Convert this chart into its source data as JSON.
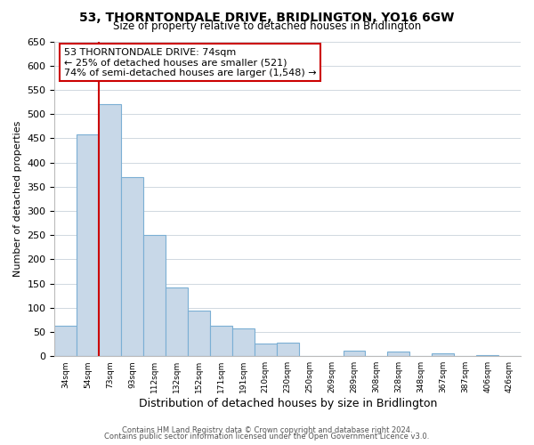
{
  "title": "53, THORNTONDALE DRIVE, BRIDLINGTON, YO16 6GW",
  "subtitle": "Size of property relative to detached houses in Bridlington",
  "xlabel": "Distribution of detached houses by size in Bridlington",
  "ylabel": "Number of detached properties",
  "bin_labels": [
    "34sqm",
    "54sqm",
    "73sqm",
    "93sqm",
    "112sqm",
    "132sqm",
    "152sqm",
    "171sqm",
    "191sqm",
    "210sqm",
    "230sqm",
    "250sqm",
    "269sqm",
    "289sqm",
    "308sqm",
    "328sqm",
    "348sqm",
    "367sqm",
    "387sqm",
    "406sqm",
    "426sqm"
  ],
  "bar_heights": [
    62,
    458,
    521,
    370,
    250,
    142,
    95,
    62,
    58,
    27,
    28,
    0,
    0,
    12,
    0,
    10,
    0,
    5,
    0,
    3,
    0
  ],
  "bar_color": "#c8d8e8",
  "bar_edge_color": "#7bafd4",
  "highlight_line_color": "#cc0000",
  "ylim": [
    0,
    650
  ],
  "yticks": [
    0,
    50,
    100,
    150,
    200,
    250,
    300,
    350,
    400,
    450,
    500,
    550,
    600,
    650
  ],
  "annotation_title": "53 THORNTONDALE DRIVE: 74sqm",
  "annotation_line1": "← 25% of detached houses are smaller (521)",
  "annotation_line2": "74% of semi-detached houses are larger (1,548) →",
  "annotation_box_color": "#ffffff",
  "annotation_box_edge": "#cc0000",
  "footer1": "Contains HM Land Registry data © Crown copyright and database right 2024.",
  "footer2": "Contains public sector information licensed under the Open Government Licence v3.0.",
  "bg_color": "#ffffff",
  "grid_color": "#d0d8e0"
}
